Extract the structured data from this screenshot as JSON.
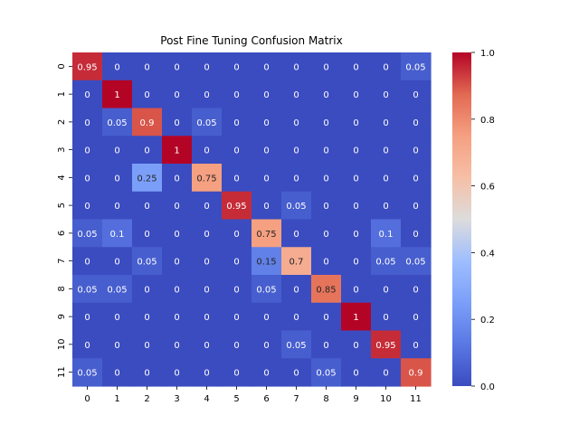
{
  "chart_data": {
    "type": "heatmap",
    "title": "Post Fine Tuning Confusion Matrix",
    "xlabel": "",
    "ylabel": "",
    "x_categories": [
      "0",
      "1",
      "2",
      "3",
      "4",
      "5",
      "6",
      "7",
      "8",
      "9",
      "10",
      "11"
    ],
    "y_categories": [
      "0",
      "1",
      "2",
      "3",
      "4",
      "5",
      "6",
      "7",
      "8",
      "9",
      "10",
      "11"
    ],
    "values": [
      [
        0.95,
        0,
        0,
        0,
        0,
        0,
        0,
        0,
        0,
        0,
        0,
        0.05
      ],
      [
        0,
        1,
        0,
        0,
        0,
        0,
        0,
        0,
        0,
        0,
        0,
        0
      ],
      [
        0,
        0.05,
        0.9,
        0,
        0.05,
        0,
        0,
        0,
        0,
        0,
        0,
        0
      ],
      [
        0,
        0,
        0,
        1,
        0,
        0,
        0,
        0,
        0,
        0,
        0,
        0
      ],
      [
        0,
        0,
        0.25,
        0,
        0.75,
        0,
        0,
        0,
        0,
        0,
        0,
        0
      ],
      [
        0,
        0,
        0,
        0,
        0,
        0.95,
        0,
        0.05,
        0,
        0,
        0,
        0
      ],
      [
        0.05,
        0.1,
        0,
        0,
        0,
        0,
        0.75,
        0,
        0,
        0,
        0.1,
        0
      ],
      [
        0,
        0,
        0.05,
        0,
        0,
        0,
        0.15,
        0.7,
        0,
        0,
        0.05,
        0.05
      ],
      [
        0.05,
        0.05,
        0,
        0,
        0,
        0,
        0.05,
        0,
        0.85,
        0,
        0,
        0
      ],
      [
        0,
        0,
        0,
        0,
        0,
        0,
        0,
        0,
        0,
        1,
        0,
        0
      ],
      [
        0,
        0,
        0,
        0,
        0,
        0,
        0,
        0.05,
        0,
        0,
        0.95,
        0
      ],
      [
        0.05,
        0,
        0,
        0,
        0,
        0,
        0,
        0,
        0.05,
        0,
        0,
        0.9
      ]
    ],
    "colormap": "coolwarm",
    "vmin": 0,
    "vmax": 1,
    "colorbar_ticks": [
      "0.0",
      "0.2",
      "0.4",
      "0.6",
      "0.8",
      "1.0"
    ],
    "grid": false,
    "colorbar": "right"
  }
}
